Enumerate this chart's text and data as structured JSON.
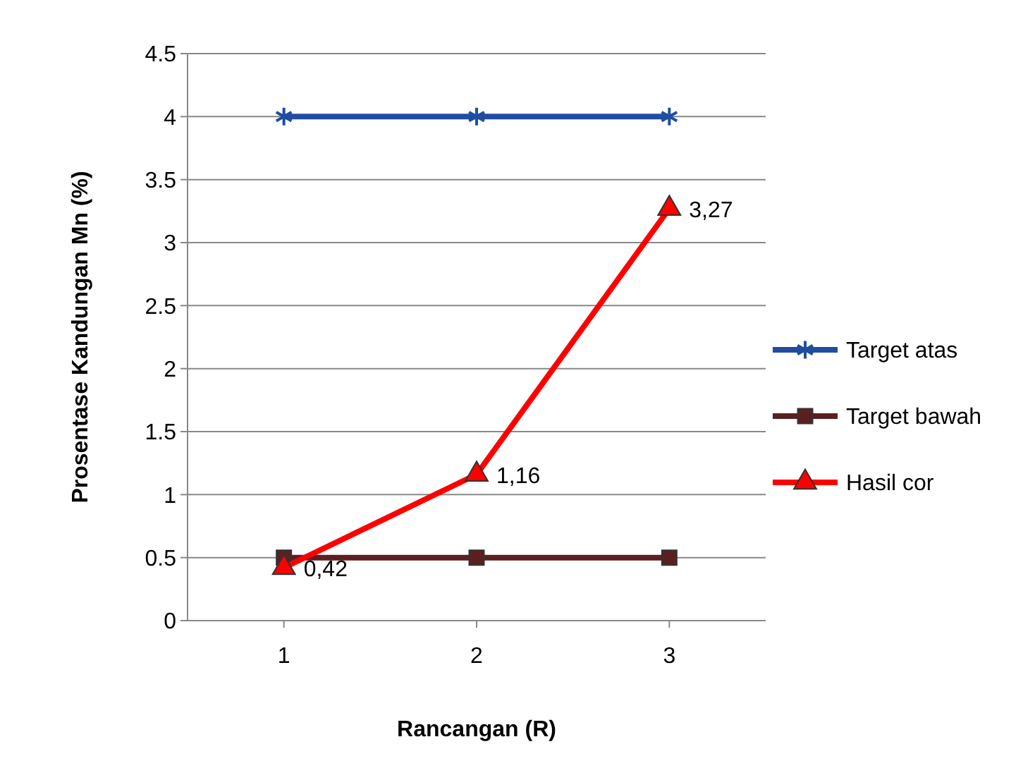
{
  "chart_data": {
    "type": "line",
    "xlabel": "Rancangan (R)",
    "ylabel": "Prosentase Kandungan Mn (%)",
    "categories": [
      "1",
      "2",
      "3"
    ],
    "series": [
      {
        "name": "Target atas",
        "color": "#1f4ea0",
        "values": [
          4,
          4,
          4
        ],
        "marker": "cross"
      },
      {
        "name": "Target bawah",
        "color": "#5c1f1f",
        "values": [
          0.5,
          0.5,
          0.5
        ],
        "marker": "square"
      },
      {
        "name": "Hasil cor",
        "color": "#ff0000",
        "values": [
          0.42,
          1.16,
          3.27
        ],
        "marker": "triangle",
        "value_labels": [
          "0,42",
          "1,16",
          "3,27"
        ]
      }
    ],
    "ylim": [
      0,
      4.5
    ],
    "yticks": [
      0,
      0.5,
      1,
      1.5,
      2,
      2.5,
      3,
      3.5,
      4,
      4.5
    ],
    "grid": "y",
    "legend": "right",
    "line_style": "solid"
  }
}
